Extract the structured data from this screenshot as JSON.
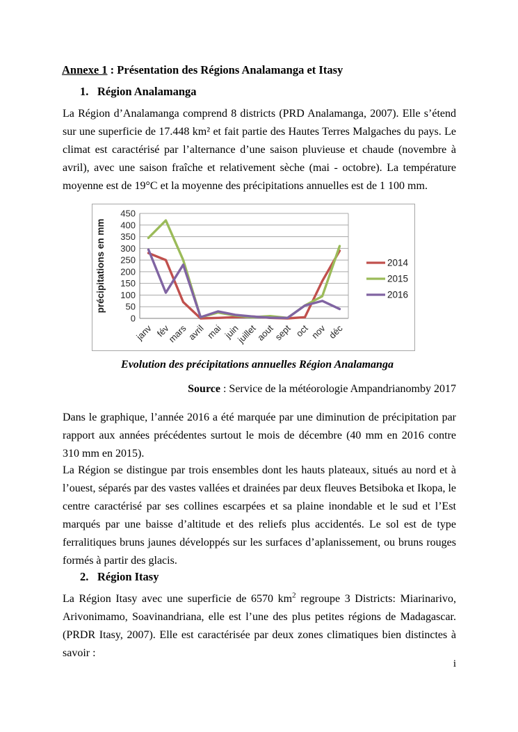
{
  "document": {
    "title_main": "Annexe 1",
    "title_rest": " : Présentation des Régions Analamanga et Itasy",
    "heading1_number": "1.",
    "heading1_label": "Région Analamanga",
    "paragraph1": "La Région d’Analamanga comprend 8 districts (PRD Analamanga, 2007). Elle s’étend sur une superficie de 17.448 km² et fait partie des Hautes Terres Malgaches du pays. Le climat est caractérisé par l’alternance d’une saison pluvieuse et chaude (novembre à avril), avec une saison fraîche et relativement sèche (mai - octobre). La température moyenne est de 19°C et la moyenne des précipitations annuelles est de 1 100 mm.",
    "figure_caption": "Evolution des précipitations annuelles Région Analamanga",
    "source_label": "Source",
    "source_rest": " : Service de la météorologie Ampandrianomby 2017",
    "paragraph2": "Dans le graphique, l’année 2016 a été marquée par une diminution de précipitation par rapport aux années précédentes surtout le mois de décembre (40 mm en 2016 contre 310 mm en 2015).",
    "paragraph3": "La Région se distingue par trois ensembles dont les hauts plateaux, situés au nord et à l’ouest, séparés par des vastes vallées et drainées par deux fleuves Betsiboka et Ikopa, le centre caractérisé par ses collines escarpées et sa plaine inondable et le sud et l’Est marqués par une baisse d’altitude et des reliefs plus accidentés. Le sol est de type ferralitiques bruns jaunes développés sur les surfaces d’aplanissement, ou bruns rouges formés à partir des glacis.",
    "heading2_number": "2.",
    "heading2_label": "Région Itasy",
    "paragraph4_before_sup": "La Région Itasy avec une superficie de 6570 km",
    "paragraph4_sup": "2",
    "paragraph4_after_sup": " regroupe 3 Districts: Miarinarivo, Arivonimamo, Soavinandriana, elle est l’une des plus petites régions de Madagascar. (PRDR Itasy, 2007). Elle est caractérisée par deux zones climatiques bien distinctes à savoir :",
    "page_number": "i"
  },
  "chart_data": {
    "type": "line",
    "categories": [
      "janv",
      "fév",
      "mars",
      "avril",
      "mai",
      "juin",
      "juillet",
      "aout",
      "sept",
      "oct",
      "nov",
      "déc"
    ],
    "series": [
      {
        "name": "2014",
        "color": "#C0504D",
        "values": [
          280,
          250,
          70,
          0,
          2,
          5,
          8,
          2,
          0,
          5,
          160,
          290
        ]
      },
      {
        "name": "2015",
        "color": "#9BBB59",
        "values": [
          345,
          420,
          250,
          5,
          25,
          12,
          5,
          10,
          2,
          55,
          95,
          310
        ]
      },
      {
        "name": "2016",
        "color": "#8064A2",
        "values": [
          295,
          110,
          230,
          5,
          30,
          15,
          8,
          3,
          2,
          55,
          75,
          40
        ]
      }
    ],
    "title": "",
    "xlabel": "",
    "ylabel": "précipitations en mm",
    "ylim": [
      0,
      450
    ],
    "ytick_step": 50,
    "grid": true,
    "legend_position": "right"
  }
}
